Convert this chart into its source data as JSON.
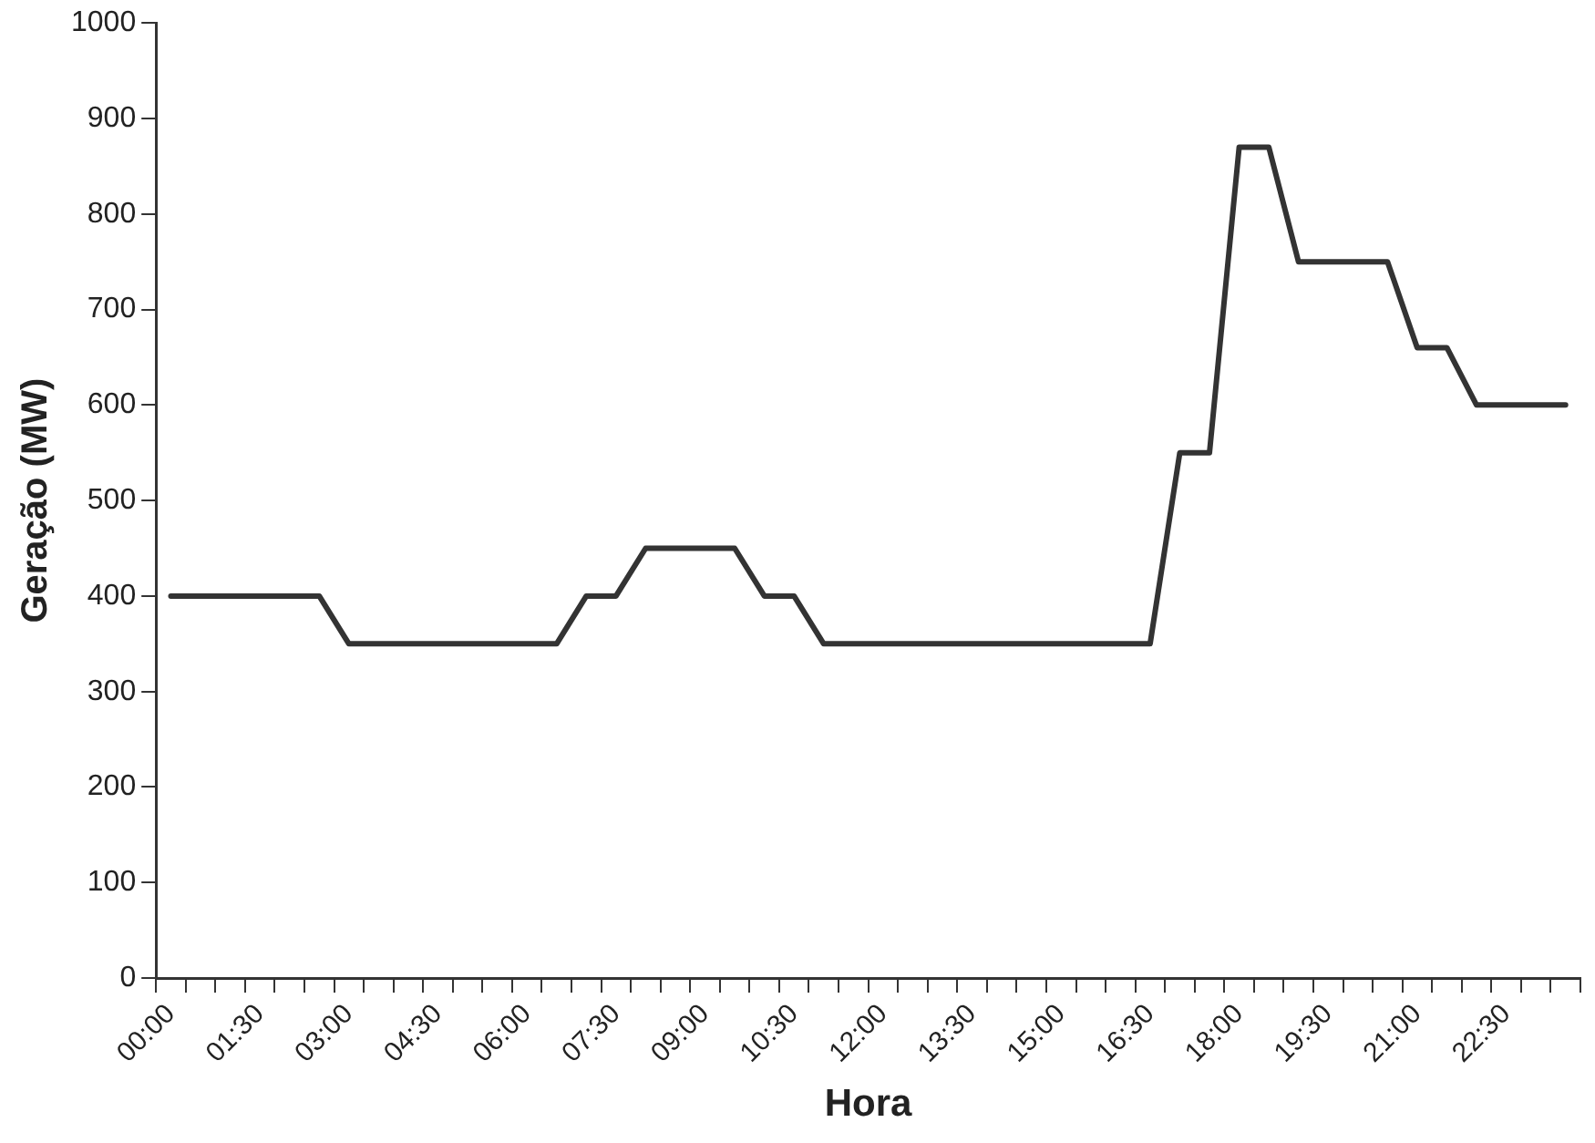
{
  "chart_data": {
    "type": "line",
    "xlabel": "Hora",
    "ylabel": "Geração (MW)",
    "categories": [
      "00:00",
      null,
      null,
      "01:30",
      null,
      null,
      "03:00",
      null,
      null,
      "04:30",
      null,
      null,
      "06:00",
      null,
      null,
      "07:30",
      null,
      null,
      "09:00",
      null,
      null,
      "10:30",
      null,
      null,
      "12:00",
      null,
      null,
      "13:30",
      null,
      null,
      "15:00",
      null,
      null,
      "16:30",
      null,
      null,
      "18:00",
      null,
      null,
      "19:30",
      null,
      null,
      "21:00",
      null,
      null,
      "22:30",
      null,
      null
    ],
    "series": [
      {
        "color": "#333333",
        "values": [
          400,
          400,
          400,
          400,
          400,
          400,
          350,
          350,
          350,
          350,
          350,
          350,
          350,
          350,
          400,
          400,
          450,
          450,
          450,
          450,
          400,
          400,
          350,
          350,
          350,
          350,
          350,
          350,
          350,
          350,
          350,
          350,
          350,
          350,
          550,
          550,
          870,
          870,
          750,
          750,
          750,
          750,
          660,
          660,
          600,
          600,
          600,
          600
        ]
      }
    ],
    "ylim": [
      0,
      1000
    ],
    "yticks": [
      0,
      100,
      200,
      300,
      400,
      500,
      600,
      700,
      800,
      900,
      1000
    ],
    "grid": false,
    "legend": false,
    "marker": "none",
    "line_style": "solid"
  }
}
